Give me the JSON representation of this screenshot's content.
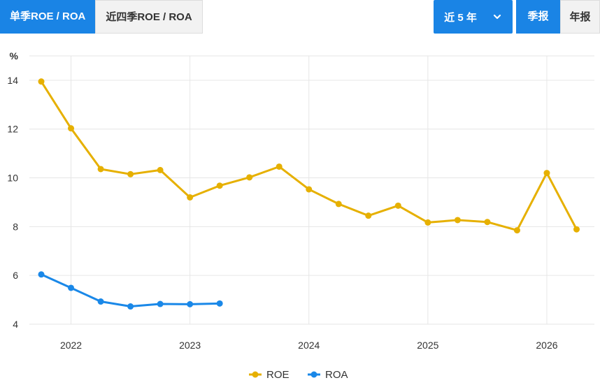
{
  "tabs": [
    {
      "label": "单季ROE / ROA",
      "active": true
    },
    {
      "label": "近四季ROE / ROA",
      "active": false
    }
  ],
  "range_select": {
    "label": "近 5 年"
  },
  "period_buttons": [
    {
      "label": "季报",
      "active": true
    },
    {
      "label": "年报",
      "active": false
    }
  ],
  "colors": {
    "accent": "#1a84e5",
    "roe": "#e6b000",
    "roa": "#1a88e8"
  },
  "chart_data": {
    "type": "line",
    "ylabel": "%",
    "ylim": [
      4,
      15
    ],
    "yticks": [
      4,
      6,
      8,
      10,
      12,
      14
    ],
    "xlim": [
      2021.65,
      2026.4
    ],
    "xticks": [
      2022,
      2023,
      2024,
      2025,
      2026
    ],
    "grid": true,
    "legend_position": "bottom",
    "series": [
      {
        "name": "ROE",
        "color": "#e6b000",
        "points": [
          {
            "x": 2021.75,
            "y": 13.95
          },
          {
            "x": 2022.0,
            "y": 12.03
          },
          {
            "x": 2022.25,
            "y": 10.36
          },
          {
            "x": 2022.5,
            "y": 10.15
          },
          {
            "x": 2022.75,
            "y": 10.32
          },
          {
            "x": 2023.0,
            "y": 9.2
          },
          {
            "x": 2023.25,
            "y": 9.68
          },
          {
            "x": 2023.5,
            "y": 10.02
          },
          {
            "x": 2023.75,
            "y": 10.46
          },
          {
            "x": 2024.0,
            "y": 9.53
          },
          {
            "x": 2024.25,
            "y": 8.93
          },
          {
            "x": 2024.5,
            "y": 8.45
          },
          {
            "x": 2024.75,
            "y": 8.86
          },
          {
            "x": 2025.0,
            "y": 8.17
          },
          {
            "x": 2025.25,
            "y": 8.27
          },
          {
            "x": 2025.5,
            "y": 8.19
          },
          {
            "x": 2025.75,
            "y": 7.85
          },
          {
            "x": 2026.0,
            "y": 10.2
          },
          {
            "x": 2026.25,
            "y": 7.89
          }
        ]
      },
      {
        "name": "ROA",
        "color": "#1a88e8",
        "points": [
          {
            "x": 2021.75,
            "y": 6.04
          },
          {
            "x": 2022.0,
            "y": 5.49
          },
          {
            "x": 2022.25,
            "y": 4.93
          },
          {
            "x": 2022.5,
            "y": 4.73
          },
          {
            "x": 2022.75,
            "y": 4.83
          },
          {
            "x": 2023.0,
            "y": 4.82
          },
          {
            "x": 2023.25,
            "y": 4.85
          }
        ]
      }
    ]
  }
}
